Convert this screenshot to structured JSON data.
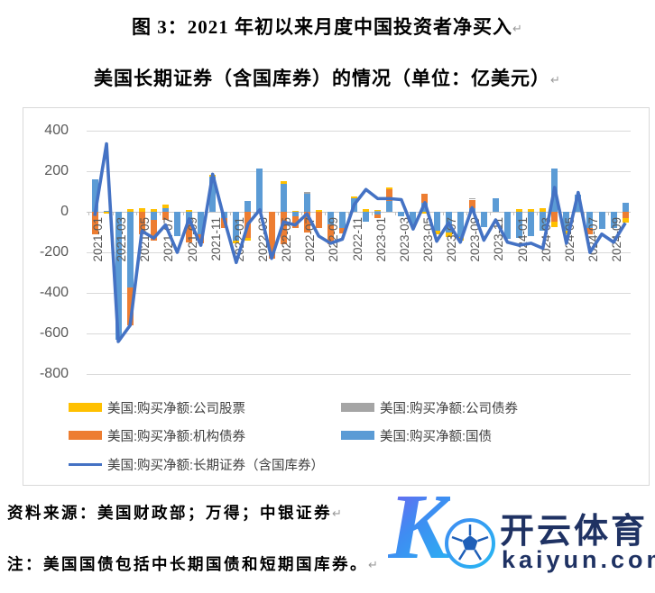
{
  "page": {
    "title_line1": "图 3：2021 年初以来月度中国投资者净买入",
    "title_line2": "美国长期证券（含国库券）的情况（单位：亿美元）",
    "paragraph_mark": "↵",
    "source_line": "资料来源：美国财政部；万得；中银证券",
    "note_line": "注：美国国债包括中长期国债和短期国库券。"
  },
  "watermark": {
    "k_letter": "K",
    "brand": "开云体育",
    "domain": "kaiyun.com",
    "navy": "#1f3263",
    "gradient_start": "#7a5cf0",
    "gradient_end": "#27b7f2"
  },
  "chart_data": {
    "type": "bar",
    "subtype": "stacked-bars-with-line",
    "title": "2021 年初以来月度中国投资者净买入美国长期证券（含国库券）的情况",
    "unit": "亿美元",
    "ylim": [
      -800,
      400
    ],
    "yticks": [
      400,
      200,
      0,
      -200,
      -400,
      -600,
      -800
    ],
    "grid": true,
    "legend_position": "bottom, two columns inside plot frame",
    "categories": [
      "2021-01",
      "2021-02",
      "2021-03",
      "2021-04",
      "2021-05",
      "2021-06",
      "2021-07",
      "2021-08",
      "2021-09",
      "2021-10",
      "2021-11",
      "2021-12",
      "2022-01",
      "2022-02",
      "2022-03",
      "2022-04",
      "2022-05",
      "2022-06",
      "2022-07",
      "2022-08",
      "2022-09",
      "2022-10",
      "2022-11",
      "2022-12",
      "2023-01",
      "2023-02",
      "2023-03",
      "2023-04",
      "2023-05",
      "2023-06",
      "2023-07",
      "2023-08",
      "2023-09",
      "2023-10",
      "2023-11",
      "2023-12",
      "2024-01",
      "2024-02",
      "2024-03",
      "2024-04",
      "2024-05",
      "2024-06",
      "2024-07",
      "2024-08",
      "2024-09",
      "2024-10"
    ],
    "x_tick_labels": [
      "2021-01",
      "2021-03",
      "2021-05",
      "2021-07",
      "2021-09",
      "2021-11",
      "2022-01",
      "2022-03",
      "2022-05",
      "2022-07",
      "2022-09",
      "2022-11",
      "2023-01",
      "2023-03",
      "2023-05",
      "2023-07",
      "2023-09",
      "2023-11",
      "2024-01",
      "2024-03",
      "2024-05",
      "2024-07",
      "2024-09"
    ],
    "stack_order": [
      3,
      2,
      1,
      0
    ],
    "series": [
      {
        "name": "美国:购买净额:公司股票",
        "color": "#FFC000",
        "values": [
          0,
          -10,
          0,
          15,
          20,
          15,
          15,
          0,
          10,
          0,
          8,
          0,
          -15,
          -10,
          0,
          0,
          10,
          5,
          0,
          10,
          0,
          0,
          10,
          15,
          5,
          10,
          0,
          0,
          -10,
          -15,
          -25,
          -15,
          0,
          0,
          0,
          0,
          15,
          15,
          20,
          -25,
          -15,
          0,
          0,
          0,
          0,
          -25
        ]
      },
      {
        "name": "美国:购买净额:公司债券",
        "color": "#A5A5A5",
        "values": [
          0,
          0,
          0,
          0,
          0,
          0,
          0,
          0,
          0,
          0,
          0,
          0,
          0,
          0,
          0,
          0,
          0,
          0,
          10,
          0,
          0,
          0,
          0,
          0,
          5,
          0,
          0,
          0,
          0,
          0,
          0,
          0,
          8,
          0,
          0,
          0,
          0,
          0,
          0,
          0,
          0,
          0,
          0,
          0,
          0,
          0
        ]
      },
      {
        "name": "美国:购买净额:机构债券",
        "color": "#ED7D31",
        "values": [
          -110,
          0,
          0,
          -185,
          -110,
          -100,
          -40,
          0,
          -90,
          -45,
          0,
          -50,
          0,
          -130,
          0,
          -230,
          -160,
          -60,
          -100,
          -80,
          -100,
          -25,
          0,
          0,
          -15,
          55,
          0,
          0,
          45,
          0,
          0,
          0,
          40,
          0,
          0,
          0,
          0,
          0,
          0,
          -50,
          0,
          0,
          -30,
          0,
          0,
          -30
        ]
      },
      {
        "name": "美国:购买净额:国债",
        "color": "#5B9BD5",
        "values": [
          160,
          5,
          -630,
          -375,
          0,
          -40,
          20,
          -120,
          -60,
          -110,
          175,
          -30,
          -140,
          55,
          215,
          0,
          140,
          -20,
          90,
          0,
          -60,
          -80,
          65,
          -50,
          -15,
          55,
          -20,
          -65,
          45,
          -95,
          -100,
          -125,
          20,
          -75,
          65,
          -135,
          -130,
          -120,
          -95,
          215,
          -95,
          85,
          -80,
          -85,
          -80,
          45
        ]
      }
    ],
    "line_series": {
      "name": "美国:购买净额:长期证券（含国库券）",
      "color": "#4472C4",
      "values": [
        -20,
        335,
        -640,
        -560,
        -95,
        -130,
        -65,
        -200,
        -35,
        -165,
        185,
        -40,
        -250,
        -60,
        10,
        -230,
        -50,
        -65,
        -10,
        -120,
        -155,
        -135,
        35,
        110,
        65,
        65,
        60,
        -85,
        45,
        -145,
        -55,
        -150,
        20,
        -140,
        -40,
        -150,
        -165,
        -155,
        -180,
        120,
        -155,
        95,
        -200,
        -110,
        -150,
        -55
      ]
    },
    "legend": [
      {
        "label": "美国:购买净额:公司股票",
        "color": "#FFC000",
        "swatch": "box",
        "col": 0,
        "row": 0
      },
      {
        "label": "美国:购买净额:公司债券",
        "color": "#A5A5A5",
        "swatch": "box",
        "col": 1,
        "row": 0
      },
      {
        "label": "美国:购买净额:机构债券",
        "color": "#ED7D31",
        "swatch": "box",
        "col": 0,
        "row": 1
      },
      {
        "label": "美国:购买净额:国债",
        "color": "#5B9BD5",
        "swatch": "box",
        "col": 1,
        "row": 1
      },
      {
        "label": "美国:购买净额:长期证券（含国库券）",
        "color": "#4472C4",
        "swatch": "line",
        "col": 0,
        "row": 2
      }
    ],
    "axis_label_color": "#595959",
    "gridline_color": "#d9d9d9"
  }
}
